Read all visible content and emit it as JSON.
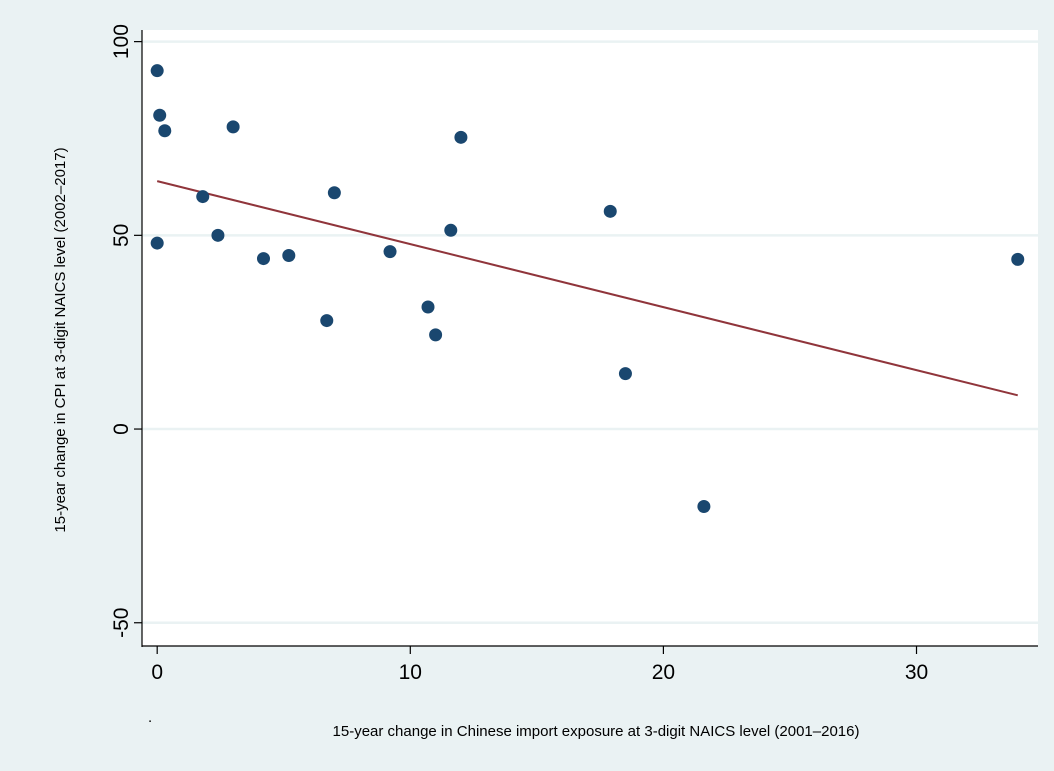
{
  "chart_data": {
    "type": "scatter",
    "title": "",
    "xlabel": "15-year change in Chinese import exposure at 3-digit NAICS level (2001–2016)",
    "ylabel": "15-year change in CPI at 3-digit NAICS level (2002–2017)",
    "note": ".",
    "xlim": [
      -0.6,
      34.8
    ],
    "ylim": [
      -56,
      103
    ],
    "xticks": [
      0,
      10,
      20,
      30
    ],
    "xtick_labels": [
      "0",
      "10",
      "20",
      "30"
    ],
    "yticks": [
      -50,
      0,
      50,
      100
    ],
    "ytick_labels": [
      "-50",
      "0",
      "50",
      "100"
    ],
    "grid": "horizontal",
    "legend": "none",
    "colors": {
      "background": "#eaf2f3",
      "plot_region": "#ffffff",
      "gridline": "#eaf2f3",
      "points": "#1a476f",
      "fit_line": "#90353b"
    },
    "points": [
      {
        "x": 0.0,
        "y": 92.5
      },
      {
        "x": 0.1,
        "y": 81.0
      },
      {
        "x": 0.3,
        "y": 77.0
      },
      {
        "x": 0.0,
        "y": 48.0
      },
      {
        "x": 1.8,
        "y": 60.0
      },
      {
        "x": 2.4,
        "y": 50.0
      },
      {
        "x": 3.0,
        "y": 78.0
      },
      {
        "x": 4.2,
        "y": 44.0
      },
      {
        "x": 5.2,
        "y": 44.8
      },
      {
        "x": 6.7,
        "y": 28.0
      },
      {
        "x": 7.0,
        "y": 61.0
      },
      {
        "x": 9.2,
        "y": 45.8
      },
      {
        "x": 10.7,
        "y": 31.5
      },
      {
        "x": 11.0,
        "y": 24.3
      },
      {
        "x": 11.6,
        "y": 51.3
      },
      {
        "x": 12.0,
        "y": 75.3
      },
      {
        "x": 17.9,
        "y": 56.2
      },
      {
        "x": 18.5,
        "y": 14.3
      },
      {
        "x": 21.6,
        "y": -20.0
      },
      {
        "x": 34.0,
        "y": 43.8
      }
    ],
    "fit_line": {
      "x": [
        0.0,
        34.0
      ],
      "y": [
        64.0,
        8.7
      ]
    }
  }
}
